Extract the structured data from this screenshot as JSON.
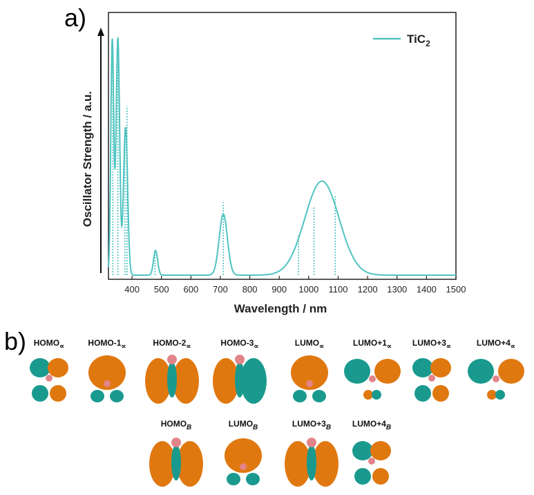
{
  "panel_a_label": "a)",
  "panel_b_label": "b)",
  "colors": {
    "line": "#4ec3c0",
    "teal": "#1a9a8e",
    "orange": "#e07810",
    "pink": "#e2848a",
    "axis": "#222222"
  },
  "chart_data": {
    "type": "line",
    "title": "",
    "xlabel": "Wavelength / nm",
    "ylabel": "Oscillator Strength / a.u.",
    "xlim": [
      320,
      1500
    ],
    "ylim": [
      0,
      1.0
    ],
    "x_ticks": [
      400,
      500,
      600,
      700,
      800,
      900,
      1000,
      1100,
      1200,
      1300,
      1400,
      1500
    ],
    "y_ticks_shown": false,
    "legend": {
      "position": "top-right",
      "entries": [
        "TiC2"
      ]
    },
    "series": [
      {
        "name": "TiC2",
        "style": "solid",
        "peaks": [
          {
            "center": 333,
            "height": 1.0,
            "width": 5
          },
          {
            "center": 352,
            "height": 1.01,
            "width": 6
          },
          {
            "center": 378,
            "height": 0.63,
            "width": 7
          },
          {
            "center": 480,
            "height": 0.105,
            "width": 7
          },
          {
            "center": 710,
            "height": 0.26,
            "width": 14
          },
          {
            "center": 1045,
            "height": 0.4,
            "width": 58
          }
        ]
      }
    ],
    "sticks": {
      "name": "transitions",
      "style": "dotted",
      "x": [
        335,
        352,
        376,
        383,
        478,
        710,
        965,
        1018,
        1090
      ],
      "values": [
        0.96,
        1.01,
        0.62,
        0.72,
        0.1,
        0.31,
        0.17,
        0.29,
        0.34
      ]
    }
  },
  "orbitals_row1": [
    {
      "prefix": "HOMO",
      "sub": "∝",
      "shape": "d4"
    },
    {
      "prefix": "HOMO-1",
      "sub": "∝",
      "shape": "round-bottom"
    },
    {
      "prefix": "HOMO-2",
      "sub": "∝",
      "shape": "big-pair"
    },
    {
      "prefix": "HOMO-3",
      "sub": "∝",
      "shape": "big-pair-flip"
    },
    {
      "prefix": "LUMO",
      "sub": "∝",
      "shape": "round-bottom"
    },
    {
      "prefix": "LUMO+1",
      "sub": "∝",
      "shape": "wings"
    },
    {
      "prefix": "LUMO+3",
      "sub": "∝",
      "shape": "d4"
    },
    {
      "prefix": "LUMO+4",
      "sub": "∝",
      "shape": "wings"
    }
  ],
  "orbitals_row2": [
    {
      "prefix": "HOMO",
      "sub": "B",
      "shape": "big-pair"
    },
    {
      "prefix": "LUMO",
      "sub": "B",
      "shape": "round-bottom"
    },
    {
      "prefix": "LUMO+3",
      "sub": "B",
      "shape": "big-pair"
    },
    {
      "prefix": "LUMO+4",
      "sub": "B",
      "shape": "d4"
    }
  ]
}
